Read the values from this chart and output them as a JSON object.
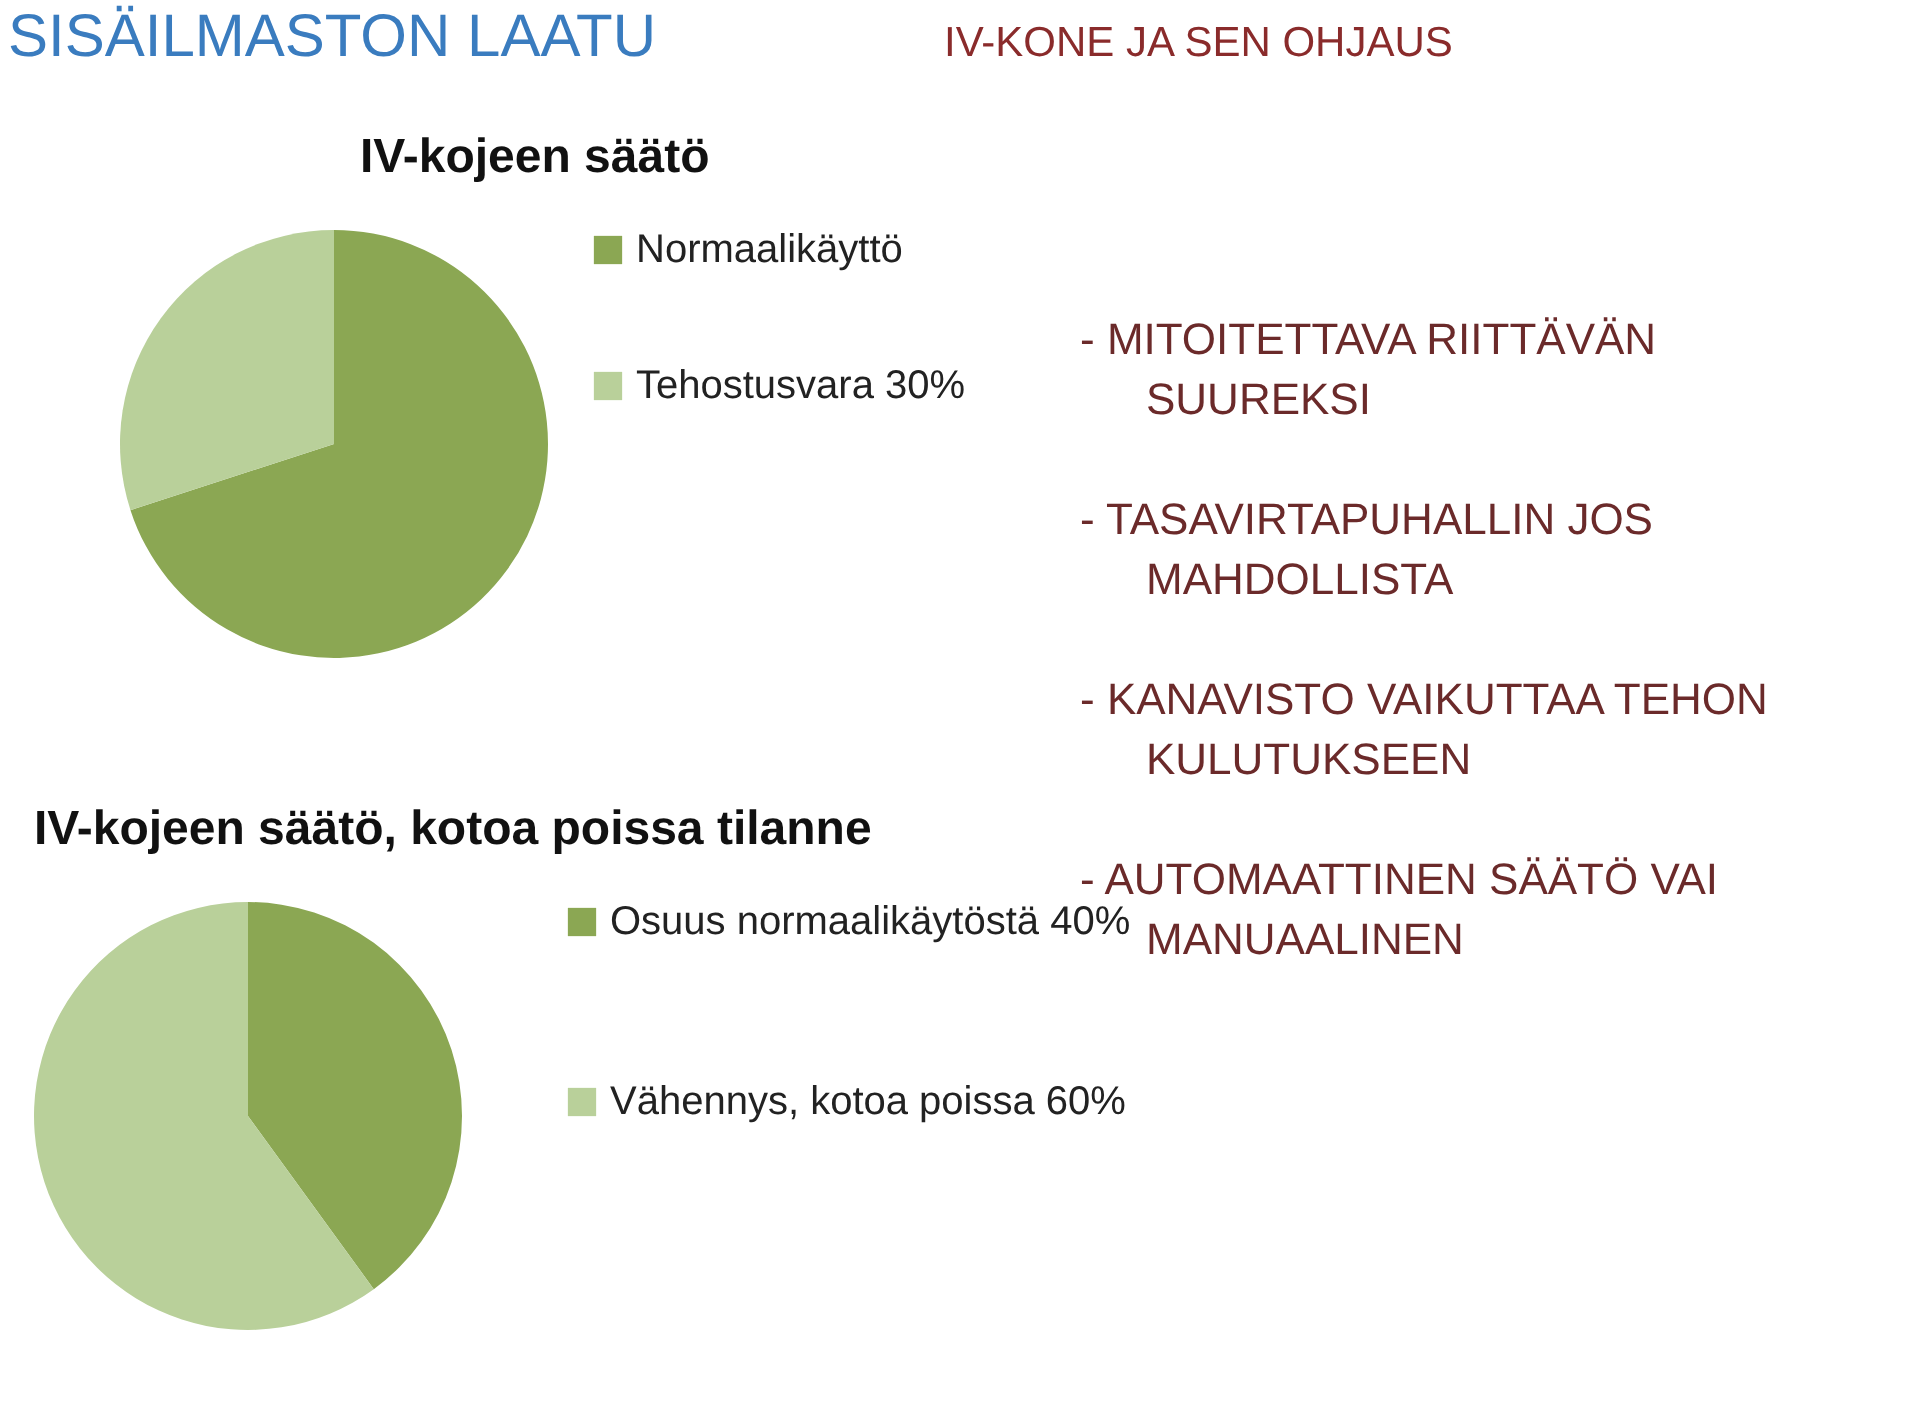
{
  "chart_data": [
    {
      "type": "pie",
      "title": "IV-kojeen säätö",
      "categories": [
        "Normaalikäyttö",
        "Tehostusvara 30%"
      ],
      "values": [
        70,
        30
      ],
      "colors": [
        "#8ba753",
        "#b9d09a"
      ],
      "legend": "right"
    },
    {
      "type": "pie",
      "title": "IV-kojeen säätö, kotoa poissa tilanne",
      "categories": [
        "Osuus normaalikäytöstä 40%",
        "Vähennys, kotoa poissa 60%"
      ],
      "values": [
        40,
        60
      ],
      "colors": [
        "#8ba753",
        "#b9d09a"
      ],
      "legend": "right"
    },
    {
      "type": "other",
      "title": "SISÄILMASTON LAATU",
      "subtitle": "IV-KONE JA SEN OHJAUS",
      "annotations": [
        "- MITOITETTAVA RIITTÄVÄN SUUREKSI",
        "- TASAVIRTAPUHALLIN JOS MAHDOLLISTA",
        "- KANAVISTO VAIKUTTAA TEHON KULUTUKSEEN",
        "- AUTOMAATTINEN SÄÄTÖ VAI MANUAALINEN"
      ]
    }
  ]
}
